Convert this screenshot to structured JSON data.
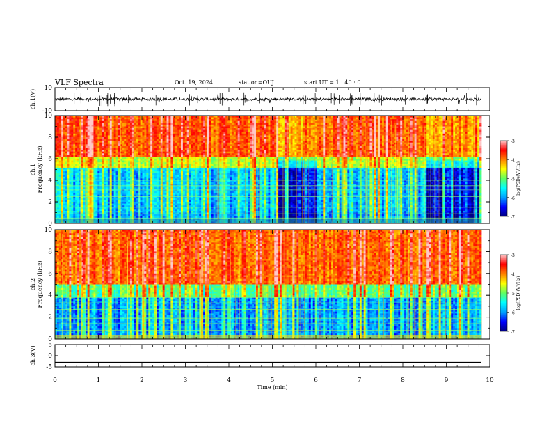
{
  "header": {
    "title": "VLF Spectra",
    "date": "Oct. 19, 2024",
    "station": "station=OUJ",
    "start_ut": "start  UT =   1 : 40 : 0"
  },
  "chart_data": [
    {
      "type": "line",
      "panel": "ch1-waveform",
      "ylabel": "ch.1(V)",
      "ylim": [
        -10,
        10
      ],
      "yticks": [
        {
          "v": 10,
          "label": "10"
        },
        {
          "v": -10,
          "label": "-10"
        }
      ],
      "xlim": [
        0,
        10
      ],
      "data_end_min": 9.8,
      "baseline": 0,
      "noise_amplitude": 1.2
    },
    {
      "type": "heatmap",
      "panel": "ch1-spectrogram",
      "ylabel": "ch.1\nFrequency (kHz)",
      "ylim": [
        0,
        10
      ],
      "yticks": [
        0,
        2,
        4,
        6,
        8,
        10
      ],
      "xlim": [
        0,
        10
      ],
      "data_end_min": 9.8,
      "quiet_intervals_min": [
        [
          5.1,
          6.0
        ],
        [
          8.5,
          9.8
        ]
      ],
      "colorbar": {
        "label": "log(PSD)(V²/Hz)",
        "range": [
          -7,
          -3
        ],
        "ticks": [
          -3,
          -4,
          -5,
          -6,
          -7
        ]
      }
    },
    {
      "type": "heatmap",
      "panel": "ch2-spectrogram",
      "ylabel": "ch.2\nFrequency (kHz)",
      "ylim": [
        0,
        10
      ],
      "yticks": [
        0,
        2,
        4,
        6,
        8,
        10
      ],
      "xlim": [
        0,
        10
      ],
      "data_end_min": 9.8,
      "colorbar": {
        "label": "log(PSD)(V²/Hz)",
        "range": [
          -7,
          -3
        ],
        "ticks": [
          -3,
          -4,
          -5,
          -6,
          -7
        ]
      }
    },
    {
      "type": "line",
      "panel": "ch3-waveform",
      "ylabel": "ch.3(V)",
      "ylim": [
        -5,
        5
      ],
      "yticks": [
        {
          "v": 5,
          "label": "5"
        },
        {
          "v": 0,
          "label": "0"
        },
        {
          "v": -5,
          "label": "-5"
        }
      ],
      "xlim": [
        0,
        10
      ],
      "data_end_min": 9.8,
      "constant_value": -3
    }
  ],
  "xaxis": {
    "label": "Time (min)",
    "ticks": [
      0,
      1,
      2,
      3,
      4,
      5,
      6,
      7,
      8,
      9,
      10
    ]
  },
  "colorscale": {
    "colors": [
      "#000080",
      "#0000ff",
      "#00a0ff",
      "#00ffff",
      "#60ff60",
      "#ffff00",
      "#ff8000",
      "#ff0000",
      "#ffc8c8"
    ]
  }
}
